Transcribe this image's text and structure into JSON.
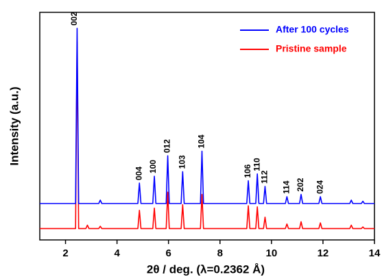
{
  "chart_data": {
    "type": "line",
    "xlabel": "2θ / deg. (λ=0.2362 Å)",
    "ylabel": "Intensity (a.u.)",
    "x": [
      1,
      2.39,
      2.45,
      2.51,
      2.79,
      2.85,
      2.91,
      3.29,
      3.35,
      3.41,
      4.81,
      4.87,
      4.93,
      5.39,
      5.45,
      5.51,
      5.91,
      5.97,
      6.03,
      6.49,
      6.55,
      6.61,
      7.24,
      7.3,
      7.36,
      9.04,
      9.1,
      9.16,
      9.39,
      9.45,
      9.51,
      9.69,
      9.75,
      9.81,
      10.54,
      10.6,
      10.66,
      11.09,
      11.15,
      11.21,
      11.84,
      11.9,
      11.96,
      13.04,
      13.1,
      13.16,
      13.49,
      13.55,
      13.61,
      14
    ],
    "series": [
      {
        "name": "After 100 cycles",
        "color": "#0000ff",
        "values": [
          16,
          16,
          93,
          16,
          16,
          16,
          16,
          16,
          17.5,
          16,
          16,
          25,
          16,
          16,
          28,
          16,
          16,
          37,
          16,
          16,
          30,
          16,
          16,
          39,
          16,
          16,
          26,
          16,
          16,
          29,
          16,
          16,
          23.5,
          16,
          16,
          19,
          16,
          16,
          20,
          16,
          16,
          19,
          16,
          16,
          17.5,
          16,
          16,
          17,
          16,
          16
        ]
      },
      {
        "name": "Pristine sample",
        "color": "#ff0000",
        "values": [
          5,
          5,
          87,
          5,
          5,
          6.5,
          5,
          5,
          6,
          5,
          5,
          13,
          5,
          5,
          14,
          5,
          5,
          21,
          5,
          5,
          15.5,
          5,
          5,
          20,
          5,
          5,
          15,
          5,
          5,
          14.5,
          5,
          5,
          10,
          5,
          5,
          7,
          5,
          5,
          8,
          5,
          5,
          7.5,
          5,
          5,
          6.5,
          5,
          5,
          5.7,
          5,
          5
        ]
      }
    ],
    "annotations": [
      {
        "text": "002",
        "x": 2.35
      },
      {
        "text": "004",
        "x": 4.87
      },
      {
        "text": "100",
        "x": 5.42
      },
      {
        "text": "012",
        "x": 5.97
      },
      {
        "text": "103",
        "x": 6.55
      },
      {
        "text": "104",
        "x": 7.3
      },
      {
        "text": "106",
        "x": 9.1
      },
      {
        "text": "110",
        "x": 9.45
      },
      {
        "text": "112",
        "x": 9.75
      },
      {
        "text": "114",
        "x": 10.6
      },
      {
        "text": "202",
        "x": 11.15
      },
      {
        "text": "024",
        "x": 11.9
      }
    ],
    "xlim": [
      1,
      14
    ],
    "xticks": [
      2,
      4,
      6,
      8,
      10,
      12,
      14
    ],
    "ylim": [
      0,
      100
    ],
    "legend": "upper right"
  }
}
